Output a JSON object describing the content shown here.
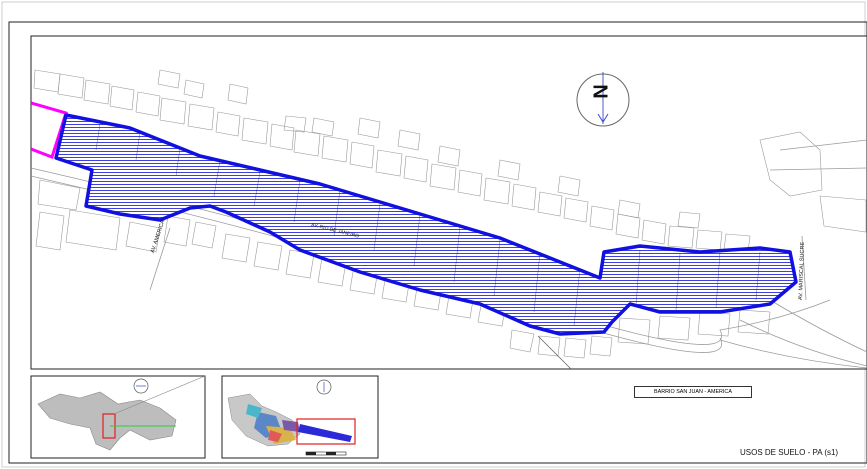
{
  "map": {
    "north_letter": "N",
    "streets": {
      "av_america": "AV. AMERICA",
      "av_mariscal_sucre": "AV. MARISCAL SUCRE",
      "av_rio_de_janeiro": "AV. RIO DE JANEIRO"
    },
    "callout": "BARRIO SAN JUAN - AMERICA",
    "sheet_title": "USOS DE SUELO - PA (s1)"
  },
  "colors": {
    "zone_outline": "#1010e0",
    "zone_hatch": "#2a2ad8",
    "adjacent_zone": "#ff00ff",
    "highlight_box": "#e02020",
    "north_arrow": "#3a4cc8",
    "linework": "#9a9a9a",
    "frame": "#222222"
  },
  "icons": {
    "north_arrow": "north-arrow-icon",
    "inset_north_arrow": "inset-north-arrow-icon"
  }
}
